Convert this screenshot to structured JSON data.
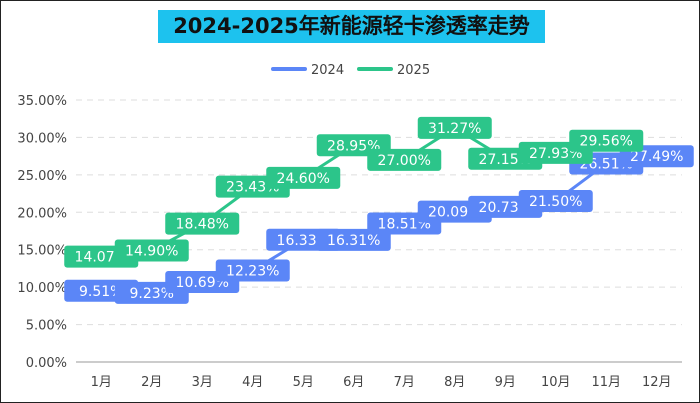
{
  "chart_data": {
    "type": "line",
    "title": "2024-2025年新能源轻卡渗透率走势",
    "categories": [
      "1月",
      "2月",
      "3月",
      "4月",
      "5月",
      "6月",
      "7月",
      "8月",
      "9月",
      "10月",
      "11月",
      "12月"
    ],
    "series": [
      {
        "name": "2024",
        "color": "#5b86f7",
        "values": [
          9.51,
          9.23,
          10.69,
          12.23,
          16.33,
          16.31,
          18.51,
          20.09,
          20.73,
          21.5,
          26.51,
          27.49
        ]
      },
      {
        "name": "2025",
        "color": "#2cc58a",
        "values": [
          14.07,
          14.9,
          18.48,
          23.43,
          24.6,
          28.95,
          27.0,
          31.27,
          27.15,
          27.93,
          29.56,
          null
        ]
      }
    ],
    "yticks": [
      "0.00%",
      "5.00%",
      "10.00%",
      "15.00%",
      "20.00%",
      "25.00%",
      "30.00%",
      "35.00%"
    ],
    "ylim": [
      0,
      35
    ],
    "grid": true,
    "legend": "top-center",
    "data_labels": true
  }
}
